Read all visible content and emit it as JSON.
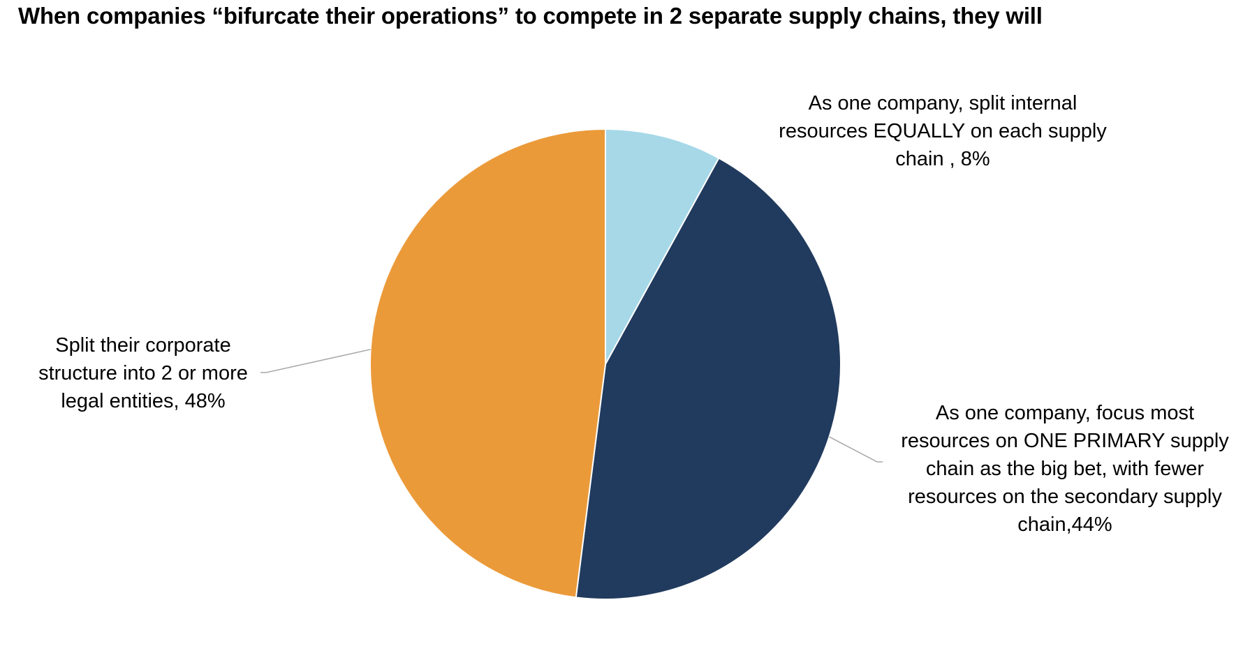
{
  "title": "When companies “bifurcate their operations” to compete in 2 separate supply chains, they will",
  "chart_data": {
    "type": "pie",
    "title": "When companies “bifurcate their operations” to compete in 2 separate supply chains, they will",
    "legend": "none",
    "slices": [
      {
        "label": "As one company, split internal resources EQUALLY on each supply chain",
        "value": 8,
        "value_label": "8%",
        "color": "#a6d8e8",
        "label_lines": [
          "As one company, split internal",
          "resources EQUALLY on each supply",
          "chain , 8%"
        ]
      },
      {
        "label": "As one company, focus most resources on ONE PRIMARY supply chain as the big bet, with fewer resources on the secondary supply chain",
        "value": 44,
        "value_label": "44%",
        "color": "#213b5e",
        "label_lines": [
          "As one company, focus most",
          "resources on ONE PRIMARY supply",
          "chain as the big bet, with fewer",
          "resources on the secondary supply",
          "chain,44%"
        ]
      },
      {
        "label": "Split their corporate structure into 2 or more legal entities",
        "value": 48,
        "value_label": "48%",
        "color": "#eb9a39",
        "label_lines": [
          "Split their corporate",
          "structure into 2 or more",
          "legal entities, 48%"
        ]
      }
    ]
  }
}
